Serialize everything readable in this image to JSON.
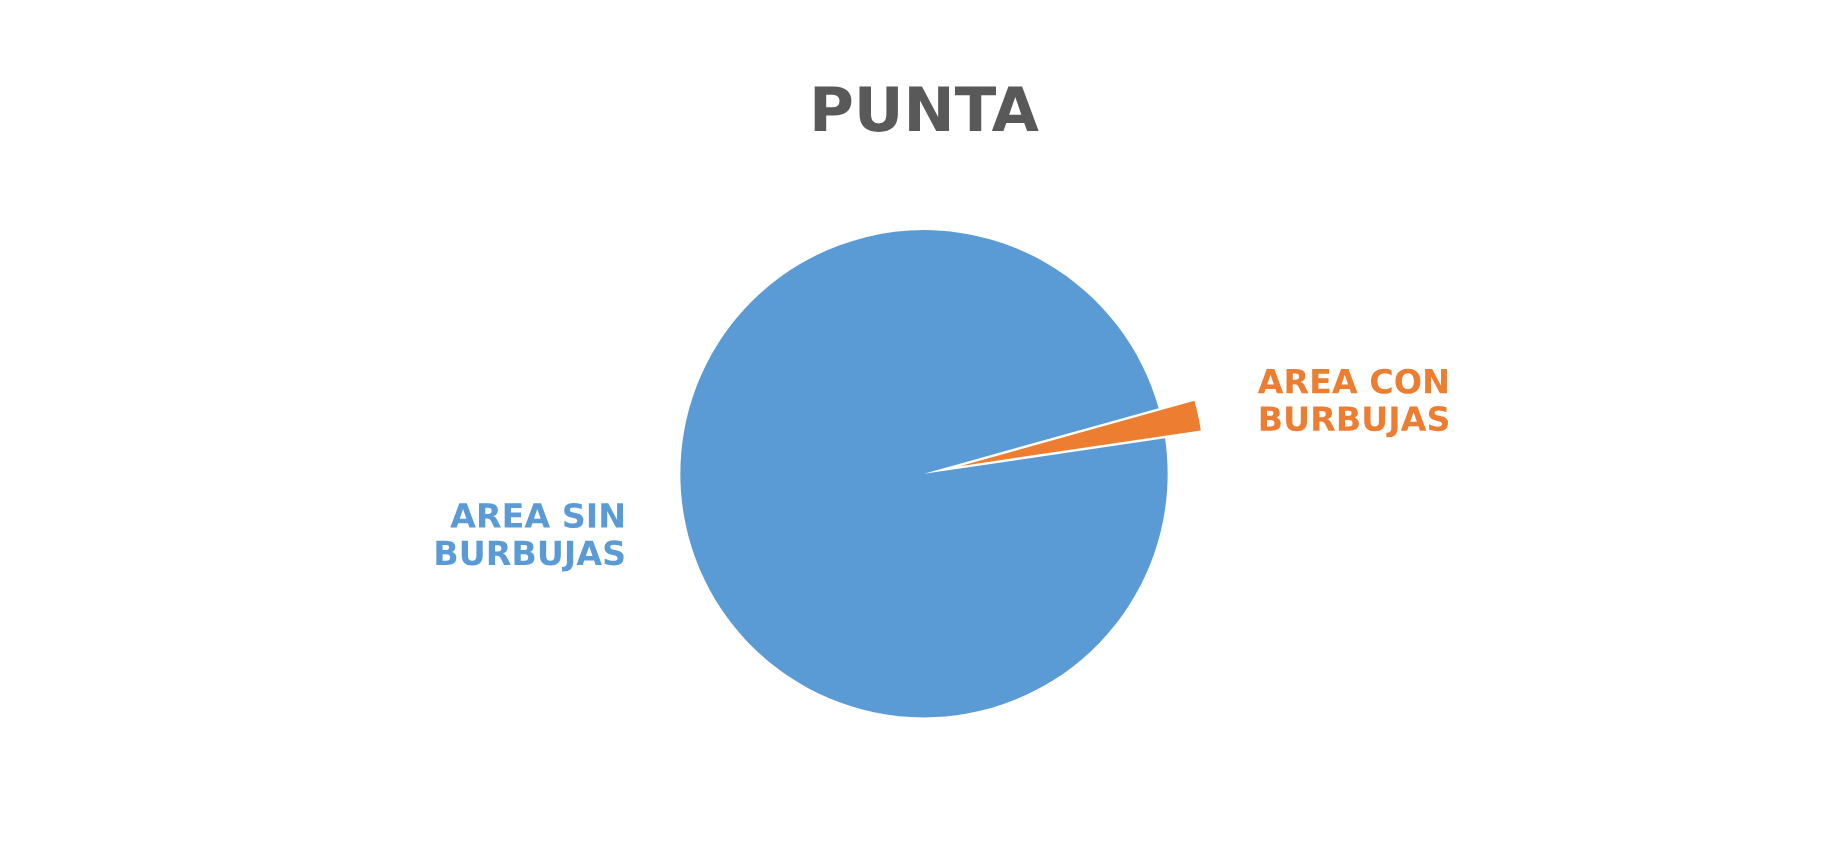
{
  "chart_data": {
    "type": "pie",
    "title": "PUNTA",
    "categories": [
      "AREA SIN\nBURBUJAS",
      "AREA CON\nBURBUJAS"
    ],
    "values": [
      98,
      2
    ],
    "colors": [
      "#5b9bd5",
      "#ed7d31"
    ]
  }
}
